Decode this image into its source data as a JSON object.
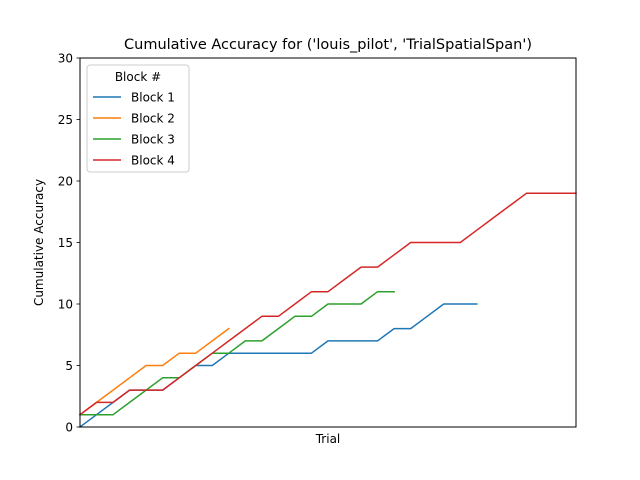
{
  "chart_data": {
    "type": "line",
    "title": "Cumulative Accuracy for ('louis_pilot', 'TrialSpatialSpan')",
    "xlabel": "Trial",
    "ylabel": "Cumulative Accuracy",
    "xlim": [
      0,
      30
    ],
    "ylim": [
      0,
      30
    ],
    "yticks": [
      "0",
      "5",
      "10",
      "15",
      "20",
      "25",
      "30"
    ],
    "xticks": [],
    "grid": false,
    "legend": {
      "title": "Block #",
      "position": "top-left"
    },
    "series": [
      {
        "name": "Block 1",
        "color": "#1f77b4",
        "x": [
          0,
          1,
          2,
          3,
          4,
          5,
          6,
          7,
          8,
          9,
          10,
          11,
          12,
          13,
          14,
          15,
          16,
          17,
          18,
          19,
          20,
          21,
          22,
          23,
          24
        ],
        "y": [
          0,
          1,
          2,
          3,
          3,
          3,
          4,
          5,
          5,
          6,
          6,
          6,
          6,
          6,
          6,
          7,
          7,
          7,
          7,
          8,
          8,
          9,
          10,
          10,
          10
        ]
      },
      {
        "name": "Block 2",
        "color": "#ff7f0e",
        "x": [
          0,
          1,
          2,
          3,
          4,
          5,
          6,
          7,
          8,
          9
        ],
        "y": [
          1,
          2,
          3,
          4,
          5,
          5,
          6,
          6,
          7,
          8
        ]
      },
      {
        "name": "Block 3",
        "color": "#2ca02c",
        "x": [
          0,
          1,
          2,
          3,
          4,
          5,
          6,
          7,
          8,
          9,
          10,
          11,
          12,
          13,
          14,
          15,
          16,
          17,
          18,
          19
        ],
        "y": [
          1,
          1,
          1,
          2,
          3,
          4,
          4,
          5,
          6,
          6,
          7,
          7,
          8,
          9,
          9,
          10,
          10,
          10,
          11,
          11
        ]
      },
      {
        "name": "Block 4",
        "color": "#d62728",
        "x": [
          0,
          1,
          2,
          3,
          4,
          5,
          6,
          7,
          8,
          9,
          10,
          11,
          12,
          13,
          14,
          15,
          16,
          17,
          18,
          19,
          20,
          21,
          22,
          23,
          24,
          25,
          26,
          27,
          28,
          29,
          30
        ],
        "y": [
          1,
          2,
          2,
          3,
          3,
          3,
          4,
          5,
          6,
          7,
          8,
          9,
          9,
          10,
          11,
          11,
          12,
          13,
          13,
          14,
          15,
          15,
          15,
          15,
          16,
          17,
          18,
          19,
          19,
          19,
          19
        ]
      }
    ]
  }
}
